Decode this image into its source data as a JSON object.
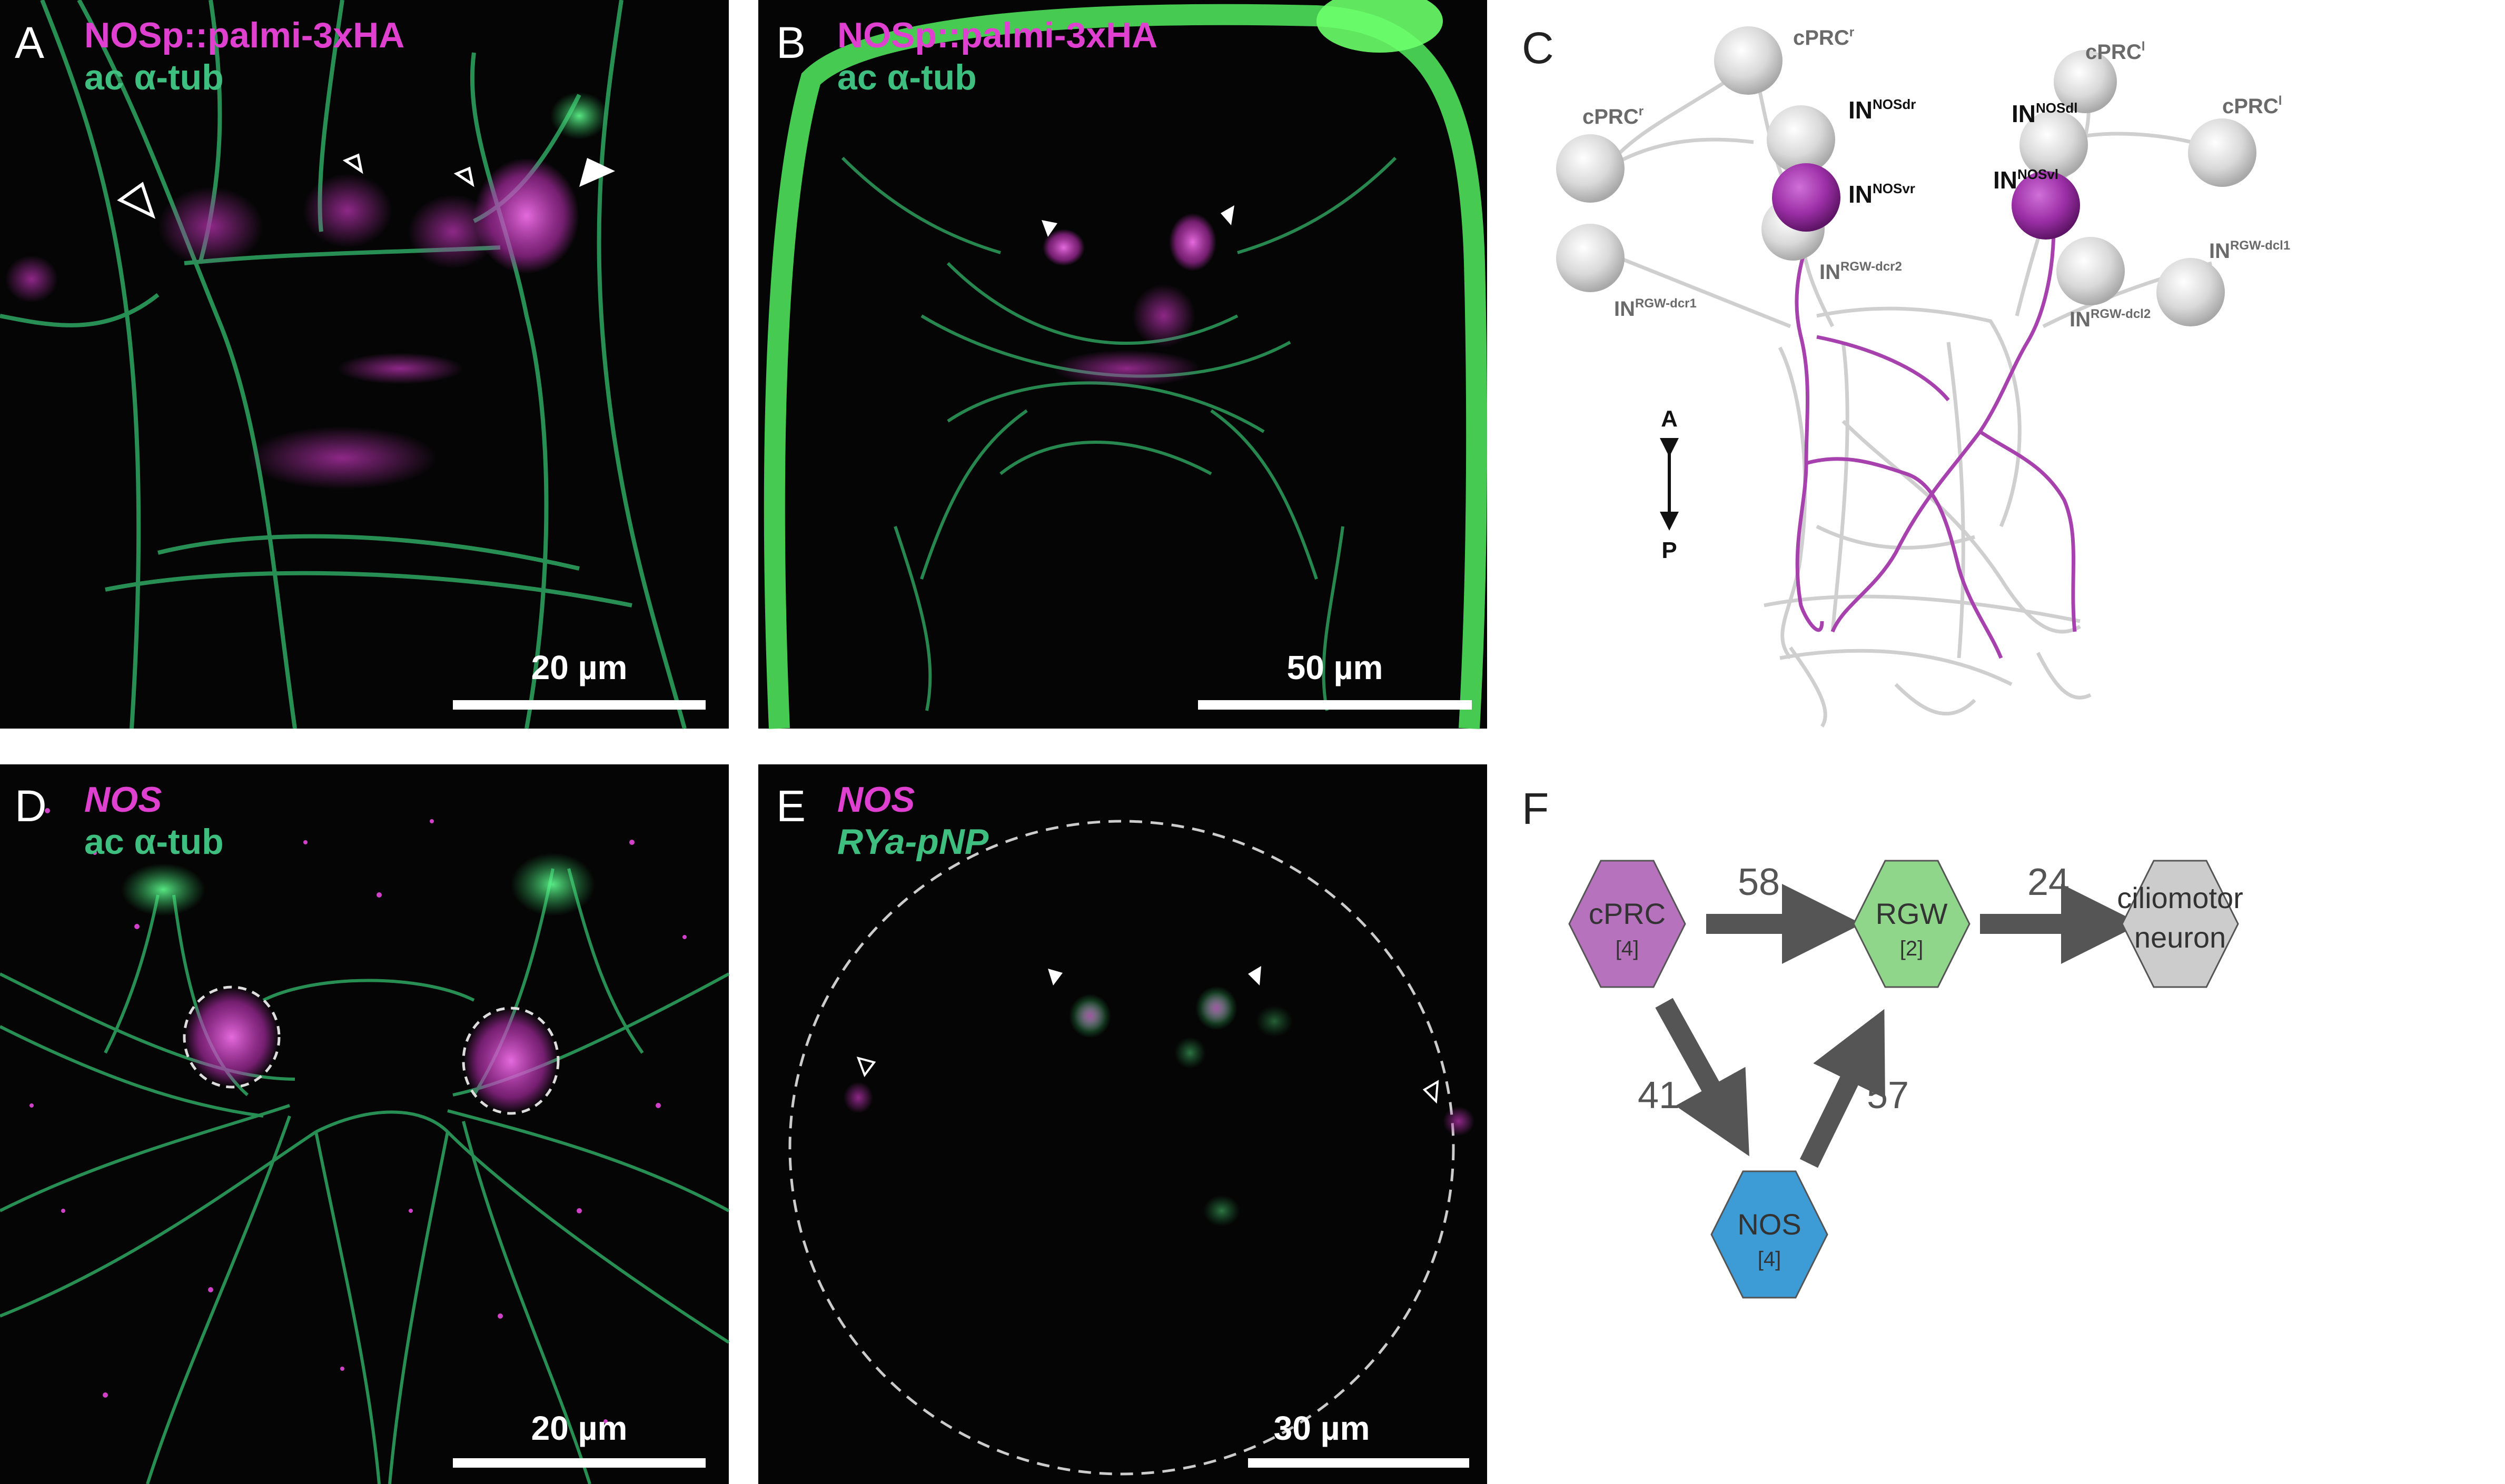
{
  "panels": {
    "A": {
      "letter": "A",
      "marker": "NOSp::palmi-3xHA",
      "stain": "ac α-tub",
      "scale": "20 µm"
    },
    "B": {
      "letter": "B",
      "marker": "NOSp::palmi-3xHA",
      "stain": "ac α-tub",
      "scale": "50 µm"
    },
    "C": {
      "letter": "C",
      "cells": {
        "cprc_r_top": "cPRC",
        "cprc_r_top_sup": "r",
        "cprc_r_left": "cPRC",
        "cprc_r_left_sup": "r",
        "cprc_l_top": "cPRC",
        "cprc_l_top_sup": "l",
        "cprc_l_right": "cPRC",
        "cprc_l_right_sup": "l",
        "in_nosdr": "IN",
        "in_nosdr_sup": "NOSdr",
        "in_nosvr": "IN",
        "in_nosvr_sup": "NOSvr",
        "in_nosdl": "IN",
        "in_nosdl_sup": "NOSdl",
        "in_nosvl": "IN",
        "in_nosvl_sup": "NOSvl",
        "in_rgw_dcr2": "IN",
        "in_rgw_dcr2_sup": "RGW-dcr2",
        "in_rgw_dcr1": "IN",
        "in_rgw_dcr1_sup": "RGW-dcr1",
        "in_rgw_dcl1": "IN",
        "in_rgw_dcl1_sup": "RGW-dcl1",
        "in_rgw_dcl2": "IN",
        "in_rgw_dcl2_sup": "RGW-dcl2"
      },
      "axis": {
        "anterior": "A",
        "posterior": "P"
      },
      "colors": {
        "nos_neuron": "#9b2fa6",
        "other_neuron": "#c8c8c8"
      }
    },
    "D": {
      "letter": "D",
      "marker": "NOS",
      "stain": "ac α-tub",
      "scale": "20 µm"
    },
    "E": {
      "letter": "E",
      "marker": "NOS",
      "stain": "RYa-pNP",
      "scale": "30 µm"
    },
    "F": {
      "letter": "F",
      "nodes": {
        "cprc": {
          "name": "cPRC",
          "count": "[4]",
          "color": "#b772bd"
        },
        "rgw": {
          "name": "RGW",
          "count": "[2]",
          "color": "#8fd68b"
        },
        "nos": {
          "name": "NOS",
          "count": "[4]",
          "color": "#3d9bd6"
        },
        "cilio": {
          "name1": "ciliomotor",
          "name2": "neuron",
          "color": "#cccccc"
        }
      },
      "edges": {
        "cprc_rgw": "58",
        "rgw_cilio": "24",
        "cprc_nos": "41",
        "nos_rgw": "57"
      }
    }
  },
  "colors": {
    "magenta": "#e040d0",
    "green": "#3fbf7f",
    "arrow": "#555555"
  }
}
